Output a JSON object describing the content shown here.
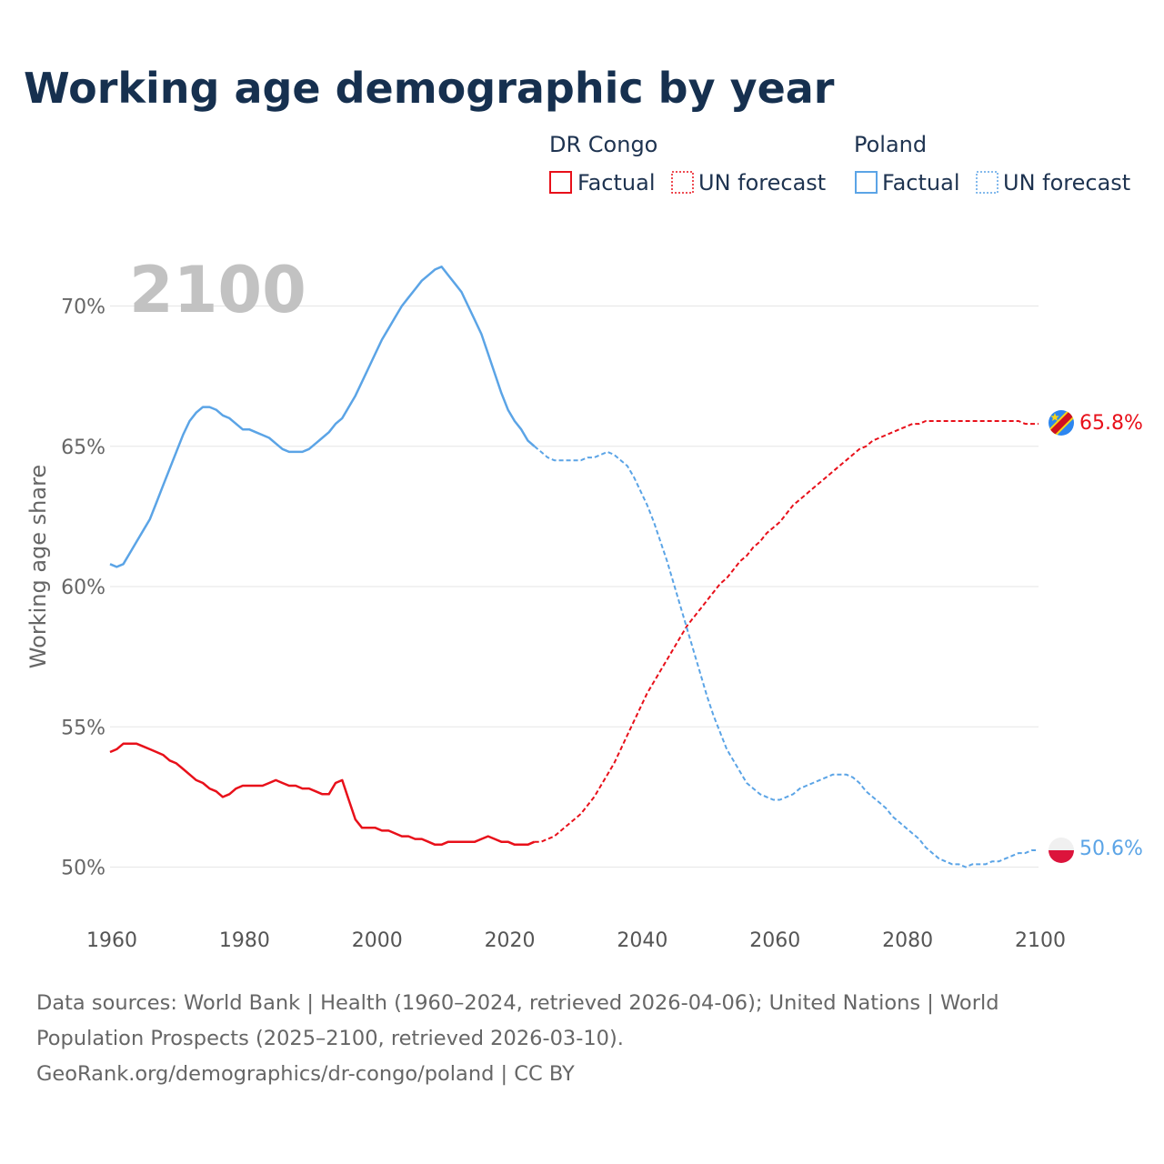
{
  "title": "Working age demographic by year",
  "year_watermark": "2100",
  "legend": {
    "groups": [
      {
        "name": "DR Congo",
        "color": "#e8101a",
        "factual_label": "Factual",
        "forecast_label": "UN forecast"
      },
      {
        "name": "Poland",
        "color": "#5ba4e6",
        "factual_label": "Factual",
        "forecast_label": "UN forecast"
      }
    ]
  },
  "footer": {
    "sources": "Data sources: World Bank | Health (1960–2024, retrieved 2026-04-06); United Nations | World Population Prospects (2025–2100, retrieved 2026-03-10).",
    "credit": "GeoRank.org/demographics/dr-congo/poland | CC BY"
  },
  "chart_data": {
    "type": "line",
    "title": "Working age demographic by year",
    "xlabel": "",
    "ylabel": "Working age share",
    "xlim": [
      1960,
      2100
    ],
    "ylim": [
      47.5,
      73
    ],
    "x_ticks": [
      1960,
      1980,
      2000,
      2020,
      2040,
      2060,
      2080,
      2100
    ],
    "y_ticks": [
      50,
      55,
      60,
      65,
      70
    ],
    "y_tick_labels": [
      "50%",
      "55%",
      "60%",
      "65%",
      "70%"
    ],
    "grid": true,
    "factual_end_year": 2024,
    "series": [
      {
        "name": "DR Congo",
        "color": "#e8101a",
        "end_label": "65.8%",
        "points": [
          [
            1960,
            54.1
          ],
          [
            1961,
            54.2
          ],
          [
            1962,
            54.4
          ],
          [
            1963,
            54.4
          ],
          [
            1964,
            54.4
          ],
          [
            1965,
            54.3
          ],
          [
            1966,
            54.2
          ],
          [
            1967,
            54.1
          ],
          [
            1968,
            54.0
          ],
          [
            1969,
            53.8
          ],
          [
            1970,
            53.7
          ],
          [
            1971,
            53.5
          ],
          [
            1972,
            53.3
          ],
          [
            1973,
            53.1
          ],
          [
            1974,
            53.0
          ],
          [
            1975,
            52.8
          ],
          [
            1976,
            52.7
          ],
          [
            1977,
            52.5
          ],
          [
            1978,
            52.6
          ],
          [
            1979,
            52.8
          ],
          [
            1980,
            52.9
          ],
          [
            1981,
            52.9
          ],
          [
            1982,
            52.9
          ],
          [
            1983,
            52.9
          ],
          [
            1984,
            53.0
          ],
          [
            1985,
            53.1
          ],
          [
            1986,
            53.0
          ],
          [
            1987,
            52.9
          ],
          [
            1988,
            52.9
          ],
          [
            1989,
            52.8
          ],
          [
            1990,
            52.8
          ],
          [
            1991,
            52.7
          ],
          [
            1992,
            52.6
          ],
          [
            1993,
            52.6
          ],
          [
            1994,
            53.0
          ],
          [
            1995,
            53.1
          ],
          [
            1996,
            52.4
          ],
          [
            1997,
            51.7
          ],
          [
            1998,
            51.4
          ],
          [
            1999,
            51.4
          ],
          [
            2000,
            51.4
          ],
          [
            2001,
            51.3
          ],
          [
            2002,
            51.3
          ],
          [
            2003,
            51.2
          ],
          [
            2004,
            51.1
          ],
          [
            2005,
            51.1
          ],
          [
            2006,
            51.0
          ],
          [
            2007,
            51.0
          ],
          [
            2008,
            50.9
          ],
          [
            2009,
            50.8
          ],
          [
            2010,
            50.8
          ],
          [
            2011,
            50.9
          ],
          [
            2012,
            50.9
          ],
          [
            2013,
            50.9
          ],
          [
            2014,
            50.9
          ],
          [
            2015,
            50.9
          ],
          [
            2016,
            51.0
          ],
          [
            2017,
            51.1
          ],
          [
            2018,
            51.0
          ],
          [
            2019,
            50.9
          ],
          [
            2020,
            50.9
          ],
          [
            2021,
            50.8
          ],
          [
            2022,
            50.8
          ],
          [
            2023,
            50.8
          ],
          [
            2024,
            50.9
          ],
          [
            2025,
            50.9
          ],
          [
            2026,
            51.0
          ],
          [
            2027,
            51.1
          ],
          [
            2028,
            51.3
          ],
          [
            2029,
            51.5
          ],
          [
            2030,
            51.7
          ],
          [
            2031,
            51.9
          ],
          [
            2032,
            52.2
          ],
          [
            2033,
            52.5
          ],
          [
            2034,
            52.9
          ],
          [
            2035,
            53.3
          ],
          [
            2036,
            53.7
          ],
          [
            2037,
            54.2
          ],
          [
            2038,
            54.7
          ],
          [
            2039,
            55.2
          ],
          [
            2040,
            55.7
          ],
          [
            2041,
            56.2
          ],
          [
            2042,
            56.6
          ],
          [
            2043,
            57.0
          ],
          [
            2044,
            57.4
          ],
          [
            2045,
            57.8
          ],
          [
            2046,
            58.2
          ],
          [
            2047,
            58.6
          ],
          [
            2048,
            58.9
          ],
          [
            2049,
            59.2
          ],
          [
            2050,
            59.5
          ],
          [
            2051,
            59.8
          ],
          [
            2052,
            60.1
          ],
          [
            2053,
            60.3
          ],
          [
            2054,
            60.6
          ],
          [
            2055,
            60.9
          ],
          [
            2056,
            61.1
          ],
          [
            2057,
            61.4
          ],
          [
            2058,
            61.6
          ],
          [
            2059,
            61.9
          ],
          [
            2060,
            62.1
          ],
          [
            2061,
            62.3
          ],
          [
            2062,
            62.6
          ],
          [
            2063,
            62.9
          ],
          [
            2064,
            63.1
          ],
          [
            2065,
            63.3
          ],
          [
            2066,
            63.5
          ],
          [
            2067,
            63.7
          ],
          [
            2068,
            63.9
          ],
          [
            2069,
            64.1
          ],
          [
            2070,
            64.3
          ],
          [
            2071,
            64.5
          ],
          [
            2072,
            64.7
          ],
          [
            2073,
            64.9
          ],
          [
            2074,
            65.0
          ],
          [
            2075,
            65.2
          ],
          [
            2076,
            65.3
          ],
          [
            2077,
            65.4
          ],
          [
            2078,
            65.5
          ],
          [
            2079,
            65.6
          ],
          [
            2080,
            65.7
          ],
          [
            2081,
            65.8
          ],
          [
            2082,
            65.8
          ],
          [
            2083,
            65.9
          ],
          [
            2084,
            65.9
          ],
          [
            2085,
            65.9
          ],
          [
            2086,
            65.9
          ],
          [
            2087,
            65.9
          ],
          [
            2088,
            65.9
          ],
          [
            2089,
            65.9
          ],
          [
            2090,
            65.9
          ],
          [
            2091,
            65.9
          ],
          [
            2092,
            65.9
          ],
          [
            2093,
            65.9
          ],
          [
            2094,
            65.9
          ],
          [
            2095,
            65.9
          ],
          [
            2096,
            65.9
          ],
          [
            2097,
            65.9
          ],
          [
            2098,
            65.8
          ],
          [
            2099,
            65.8
          ],
          [
            2100,
            65.8
          ]
        ]
      },
      {
        "name": "Poland",
        "color": "#5ba4e6",
        "end_label": "50.6%",
        "points": [
          [
            1960,
            60.8
          ],
          [
            1961,
            60.7
          ],
          [
            1962,
            60.8
          ],
          [
            1963,
            61.2
          ],
          [
            1964,
            61.6
          ],
          [
            1965,
            62.0
          ],
          [
            1966,
            62.4
          ],
          [
            1967,
            63.0
          ],
          [
            1968,
            63.6
          ],
          [
            1969,
            64.2
          ],
          [
            1970,
            64.8
          ],
          [
            1971,
            65.4
          ],
          [
            1972,
            65.9
          ],
          [
            1973,
            66.2
          ],
          [
            1974,
            66.4
          ],
          [
            1975,
            66.4
          ],
          [
            1976,
            66.3
          ],
          [
            1977,
            66.1
          ],
          [
            1978,
            66.0
          ],
          [
            1979,
            65.8
          ],
          [
            1980,
            65.6
          ],
          [
            1981,
            65.6
          ],
          [
            1982,
            65.5
          ],
          [
            1983,
            65.4
          ],
          [
            1984,
            65.3
          ],
          [
            1985,
            65.1
          ],
          [
            1986,
            64.9
          ],
          [
            1987,
            64.8
          ],
          [
            1988,
            64.8
          ],
          [
            1989,
            64.8
          ],
          [
            1990,
            64.9
          ],
          [
            1991,
            65.1
          ],
          [
            1992,
            65.3
          ],
          [
            1993,
            65.5
          ],
          [
            1994,
            65.8
          ],
          [
            1995,
            66.0
          ],
          [
            1996,
            66.4
          ],
          [
            1997,
            66.8
          ],
          [
            1998,
            67.3
          ],
          [
            1999,
            67.8
          ],
          [
            2000,
            68.3
          ],
          [
            2001,
            68.8
          ],
          [
            2002,
            69.2
          ],
          [
            2003,
            69.6
          ],
          [
            2004,
            70.0
          ],
          [
            2005,
            70.3
          ],
          [
            2006,
            70.6
          ],
          [
            2007,
            70.9
          ],
          [
            2008,
            71.1
          ],
          [
            2009,
            71.3
          ],
          [
            2010,
            71.4
          ],
          [
            2011,
            71.1
          ],
          [
            2012,
            70.8
          ],
          [
            2013,
            70.5
          ],
          [
            2014,
            70.0
          ],
          [
            2015,
            69.5
          ],
          [
            2016,
            69.0
          ],
          [
            2017,
            68.3
          ],
          [
            2018,
            67.6
          ],
          [
            2019,
            66.9
          ],
          [
            2020,
            66.3
          ],
          [
            2021,
            65.9
          ],
          [
            2022,
            65.6
          ],
          [
            2023,
            65.2
          ],
          [
            2024,
            65.0
          ],
          [
            2025,
            64.8
          ],
          [
            2026,
            64.6
          ],
          [
            2027,
            64.5
          ],
          [
            2028,
            64.5
          ],
          [
            2029,
            64.5
          ],
          [
            2030,
            64.5
          ],
          [
            2031,
            64.5
          ],
          [
            2032,
            64.6
          ],
          [
            2033,
            64.6
          ],
          [
            2034,
            64.7
          ],
          [
            2035,
            64.8
          ],
          [
            2036,
            64.7
          ],
          [
            2037,
            64.5
          ],
          [
            2038,
            64.3
          ],
          [
            2039,
            63.9
          ],
          [
            2040,
            63.4
          ],
          [
            2041,
            62.9
          ],
          [
            2042,
            62.3
          ],
          [
            2043,
            61.6
          ],
          [
            2044,
            60.9
          ],
          [
            2045,
            60.1
          ],
          [
            2046,
            59.3
          ],
          [
            2047,
            58.5
          ],
          [
            2048,
            57.7
          ],
          [
            2049,
            56.9
          ],
          [
            2050,
            56.1
          ],
          [
            2051,
            55.4
          ],
          [
            2052,
            54.8
          ],
          [
            2053,
            54.2
          ],
          [
            2054,
            53.8
          ],
          [
            2055,
            53.4
          ],
          [
            2056,
            53.0
          ],
          [
            2057,
            52.8
          ],
          [
            2058,
            52.6
          ],
          [
            2059,
            52.5
          ],
          [
            2060,
            52.4
          ],
          [
            2061,
            52.4
          ],
          [
            2062,
            52.5
          ],
          [
            2063,
            52.6
          ],
          [
            2064,
            52.8
          ],
          [
            2065,
            52.9
          ],
          [
            2066,
            53.0
          ],
          [
            2067,
            53.1
          ],
          [
            2068,
            53.2
          ],
          [
            2069,
            53.3
          ],
          [
            2070,
            53.3
          ],
          [
            2071,
            53.3
          ],
          [
            2072,
            53.2
          ],
          [
            2073,
            53.0
          ],
          [
            2074,
            52.7
          ],
          [
            2075,
            52.5
          ],
          [
            2076,
            52.3
          ],
          [
            2077,
            52.1
          ],
          [
            2078,
            51.8
          ],
          [
            2079,
            51.6
          ],
          [
            2080,
            51.4
          ],
          [
            2081,
            51.2
          ],
          [
            2082,
            51.0
          ],
          [
            2083,
            50.7
          ],
          [
            2084,
            50.5
          ],
          [
            2085,
            50.3
          ],
          [
            2086,
            50.2
          ],
          [
            2087,
            50.1
          ],
          [
            2088,
            50.1
          ],
          [
            2089,
            50.0
          ],
          [
            2090,
            50.1
          ],
          [
            2091,
            50.1
          ],
          [
            2092,
            50.1
          ],
          [
            2093,
            50.2
          ],
          [
            2094,
            50.2
          ],
          [
            2095,
            50.3
          ],
          [
            2096,
            50.4
          ],
          [
            2097,
            50.5
          ],
          [
            2098,
            50.5
          ],
          [
            2099,
            50.6
          ],
          [
            2100,
            50.6
          ]
        ]
      }
    ]
  }
}
